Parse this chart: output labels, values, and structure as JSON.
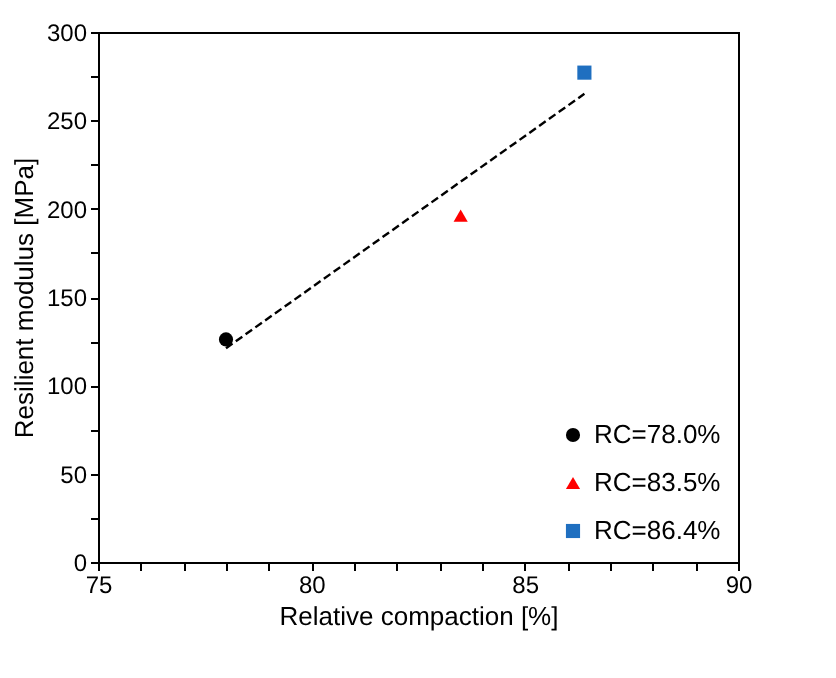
{
  "chart_data": {
    "type": "scatter",
    "xlabel": "Relative compaction [%]",
    "ylabel": "Resilient modulus [MPa]",
    "xlim": [
      75,
      90
    ],
    "ylim": [
      0,
      300
    ],
    "xticks": [
      75,
      {
        "value": 76,
        "label": null
      },
      {
        "value": 77,
        "label": null
      },
      {
        "value": 78,
        "label": null
      },
      {
        "value": 79,
        "label": null
      },
      80,
      {
        "value": 81,
        "label": null
      },
      {
        "value": 82,
        "label": null
      },
      {
        "value": 83,
        "label": null
      },
      {
        "value": 84,
        "label": null
      },
      85,
      {
        "value": 86,
        "label": null
      },
      {
        "value": 87,
        "label": null
      },
      {
        "value": 88,
        "label": null
      },
      {
        "value": 89,
        "label": null
      },
      90
    ],
    "yticks": [
      0,
      {
        "value": 25,
        "label": null
      },
      50,
      {
        "value": 75,
        "label": null
      },
      100,
      {
        "value": 125,
        "label": null
      },
      150,
      {
        "value": 175,
        "label": null
      },
      200,
      {
        "value": 225,
        "label": null
      },
      250,
      {
        "value": 275,
        "label": null
      },
      300
    ],
    "grid": false,
    "legend": "bottom right",
    "series": [
      {
        "type": "line",
        "line_style": "dashed",
        "marker": "none",
        "color": "#000000",
        "x": [
          78.0,
          86.4
        ],
        "values": [
          121,
          265
        ]
      },
      {
        "name": "RC=78.0%",
        "marker": "circle",
        "color": "#000000",
        "x": [
          78.0
        ],
        "values": [
          126
        ]
      },
      {
        "name": "RC=83.5%",
        "marker": "triangle",
        "color": "#ff0000",
        "x": [
          83.5
        ],
        "values": [
          196
        ]
      },
      {
        "name": "RC=86.4%",
        "marker": "square",
        "color": "#1f6fc0",
        "x": [
          86.4
        ],
        "values": [
          277
        ]
      }
    ]
  }
}
